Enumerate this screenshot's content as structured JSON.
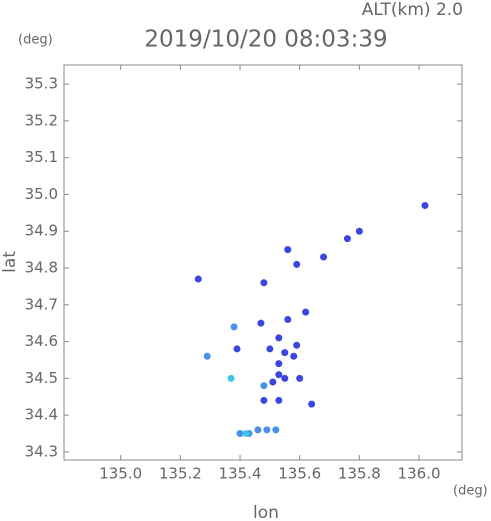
{
  "chart_data": {
    "type": "scatter",
    "title": "2019/10/20 08:03:39",
    "subtitle": "ALT(km) 2.0",
    "x_label": "lon",
    "x_unit": "(deg)",
    "y_label": "lat",
    "y_unit": "(deg)",
    "xlim": [
      134.81,
      136.144
    ],
    "ylim": [
      34.278,
      35.352
    ],
    "xticks": [
      {
        "value": 135,
        "label": "135.0"
      },
      135.2,
      135.4,
      135.6,
      135.8,
      {
        "value": 136,
        "label": "136.0"
      }
    ],
    "yticks": [
      34.3,
      34.4,
      34.5,
      34.6,
      34.7,
      34.8,
      34.9,
      {
        "value": 35,
        "label": "35.0"
      },
      35.1,
      35.2,
      35.3
    ],
    "series": [
      {
        "color": "#3b46e0",
        "x": [
          136.02,
          135.76,
          135.8,
          135.26,
          135.48,
          135.56,
          135.59,
          135.68,
          135.62,
          135.56,
          135.47,
          135.53,
          135.5,
          135.55,
          135.59,
          135.53,
          135.58,
          135.39,
          135.53,
          135.51,
          135.55,
          135.6,
          135.53,
          135.64,
          135.48
        ],
        "values": [
          34.97,
          34.88,
          34.9,
          34.77,
          34.76,
          34.85,
          34.81,
          34.83,
          34.68,
          34.66,
          34.65,
          34.61,
          34.58,
          34.57,
          34.59,
          34.54,
          34.56,
          34.58,
          34.51,
          34.49,
          34.5,
          34.5,
          34.44,
          34.43,
          34.44
        ]
      },
      {
        "color": "#4a8fe8",
        "x": [
          135.38,
          135.29,
          135.48,
          135.4,
          135.43,
          135.46,
          135.49,
          135.52
        ],
        "values": [
          34.64,
          34.56,
          34.48,
          34.35,
          34.35,
          34.36,
          34.36,
          34.36
        ]
      },
      {
        "color": "#3fc6e6",
        "x": [
          135.37,
          135.42
        ],
        "values": [
          34.5,
          34.35
        ]
      }
    ]
  }
}
